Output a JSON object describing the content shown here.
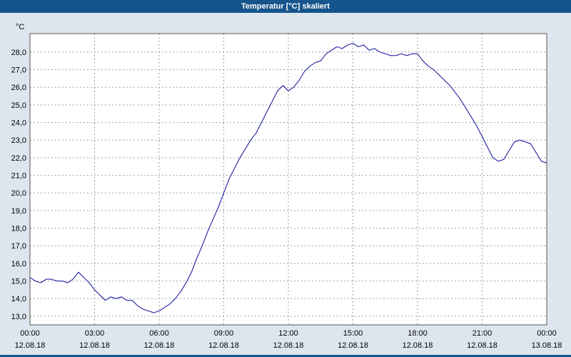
{
  "window": {
    "title": "Temperatur [°C] skaliert"
  },
  "chart_data": {
    "type": "line",
    "title": "Temperatur [°C] skaliert",
    "xlabel": "",
    "ylabel": "°C",
    "legend": "none",
    "grid": "dashed",
    "xlim": [
      0,
      24
    ],
    "ylim": [
      12.51,
      29.05
    ],
    "yticks": [
      13,
      14,
      15,
      16,
      17,
      18,
      19,
      20,
      21,
      22,
      23,
      24,
      25,
      26,
      27,
      28
    ],
    "ytick_labels": [
      "13,0",
      "14,0",
      "15,0",
      "16,0",
      "17,0",
      "18,0",
      "19,0",
      "20,0",
      "21,0",
      "22,0",
      "23,0",
      "24,0",
      "25,0",
      "26,0",
      "27,0",
      "28,0"
    ],
    "xticks": [
      0,
      3,
      6,
      9,
      12,
      15,
      18,
      21,
      24
    ],
    "xtick_labels": [
      "00:00",
      "03:00",
      "06:00",
      "09:00",
      "12:00",
      "15:00",
      "18:00",
      "21:00",
      "00:00"
    ],
    "xtick_dates": [
      "12.08.18",
      "12.08.18",
      "12.08.18",
      "12.08.18",
      "12.08.18",
      "12.08.18",
      "12.08.18",
      "12.08.18",
      "13.08.18"
    ],
    "colors": {
      "titlebar_bg": "#15548c",
      "title_text": "#ffffff",
      "window_bg": "#dde6ef",
      "plot_bg": "#ffffff",
      "grid": "#9aa0a6",
      "border": "#555555",
      "line": "#2020a0"
    },
    "series": [
      {
        "name": "Temperatur [°C]",
        "x": [
          0,
          0.25,
          0.5,
          0.75,
          1,
          1.25,
          1.5,
          1.75,
          2,
          2.25,
          2.5,
          2.75,
          3,
          3.25,
          3.5,
          3.75,
          4,
          4.25,
          4.5,
          4.75,
          5,
          5.25,
          5.5,
          5.75,
          6,
          6.25,
          6.5,
          6.75,
          7,
          7.25,
          7.5,
          7.75,
          8,
          8.25,
          8.5,
          8.75,
          9,
          9.25,
          9.5,
          9.75,
          10,
          10.25,
          10.5,
          10.75,
          11,
          11.25,
          11.5,
          11.75,
          12,
          12.25,
          12.5,
          12.75,
          13,
          13.25,
          13.5,
          13.75,
          14,
          14.25,
          14.5,
          14.75,
          15,
          15.25,
          15.5,
          15.75,
          16,
          16.25,
          16.5,
          16.75,
          17,
          17.25,
          17.5,
          17.75,
          18,
          18.25,
          18.5,
          18.75,
          19,
          19.25,
          19.5,
          19.75,
          20,
          20.25,
          20.5,
          20.75,
          21,
          21.25,
          21.5,
          21.75,
          22,
          22.25,
          22.5,
          22.75,
          23,
          23.25,
          23.5,
          23.75,
          24
        ],
        "y": [
          15.2,
          15.0,
          14.9,
          15.1,
          15.1,
          15.0,
          15.0,
          14.9,
          15.1,
          15.5,
          15.2,
          14.9,
          14.5,
          14.2,
          13.9,
          14.1,
          14.0,
          14.1,
          13.9,
          13.9,
          13.6,
          13.4,
          13.3,
          13.2,
          13.3,
          13.5,
          13.7,
          14.0,
          14.4,
          14.9,
          15.5,
          16.3,
          17.0,
          17.8,
          18.5,
          19.2,
          20.0,
          20.8,
          21.4,
          22.0,
          22.5,
          23.0,
          23.4,
          24.0,
          24.6,
          25.2,
          25.8,
          26.1,
          25.8,
          26.0,
          26.4,
          26.9,
          27.2,
          27.4,
          27.5,
          27.9,
          28.1,
          28.3,
          28.2,
          28.4,
          28.5,
          28.3,
          28.4,
          28.1,
          28.2,
          28.0,
          27.9,
          27.8,
          27.8,
          27.9,
          27.8,
          27.9,
          27.9,
          27.5,
          27.2,
          27.0,
          26.7,
          26.4,
          26.1,
          25.7,
          25.3,
          24.8,
          24.3,
          23.8,
          23.2,
          22.6,
          22.0,
          21.8,
          21.9,
          22.4,
          22.9,
          23.0,
          22.9,
          22.8,
          22.3,
          21.8,
          21.7
        ]
      }
    ]
  }
}
